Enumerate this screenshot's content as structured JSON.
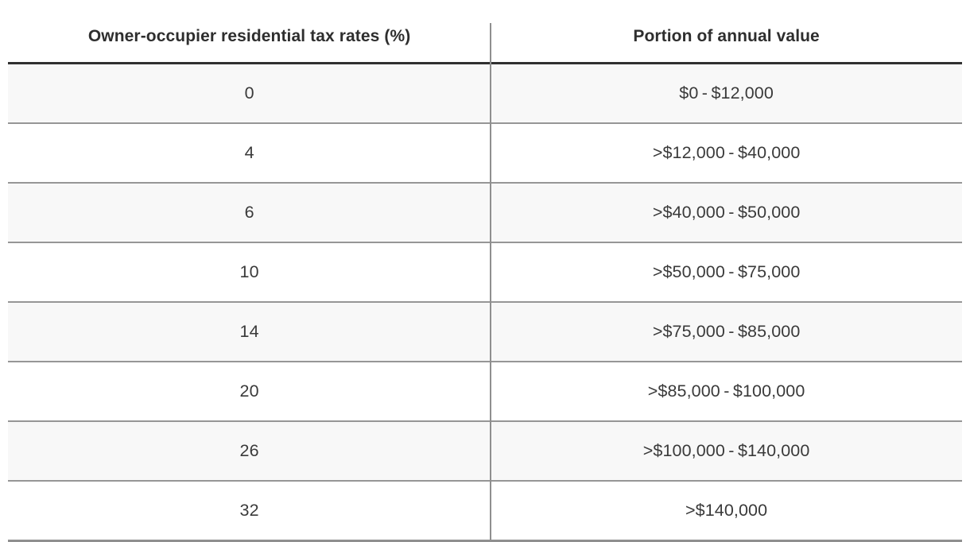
{
  "chart_data": {
    "type": "table",
    "columns": [
      "Owner-occupier residential tax rates (%)",
      "Portion of annual value"
    ],
    "rows": [
      [
        "0",
        "$0 - $12,000"
      ],
      [
        "4",
        ">$12,000 - $40,000"
      ],
      [
        "6",
        ">$40,000 - $50,000"
      ],
      [
        "10",
        ">$50,000 - $75,000"
      ],
      [
        "14",
        ">$75,000 - $85,000"
      ],
      [
        "20",
        ">$85,000 - $100,000"
      ],
      [
        "26",
        ">$100,000 - $140,000"
      ],
      [
        "32",
        ">$140,000"
      ]
    ],
    "tax_rates_percent": [
      0,
      4,
      6,
      10,
      14,
      20,
      26,
      32
    ],
    "annual_value_bands_dollars": [
      {
        "min": 0,
        "max": 12000
      },
      {
        "min": 12000,
        "max": 40000
      },
      {
        "min": 40000,
        "max": 50000
      },
      {
        "min": 50000,
        "max": 75000
      },
      {
        "min": 75000,
        "max": 85000
      },
      {
        "min": 85000,
        "max": 100000
      },
      {
        "min": 100000,
        "max": 140000
      },
      {
        "min": 140000,
        "max": null
      }
    ],
    "layout": {
      "zebra_striping": "odd rows shaded",
      "column_split_percent": [
        50.6,
        49.4
      ]
    }
  },
  "colors": {
    "page_background": "#ffffff",
    "header_text": "#2e2e2e",
    "cell_text": "#3a3a3a",
    "zebra_row_background": "#f8f8f8",
    "header_underline": "#303030",
    "row_separator": "#969696",
    "column_divider": "#8f8f8f"
  }
}
